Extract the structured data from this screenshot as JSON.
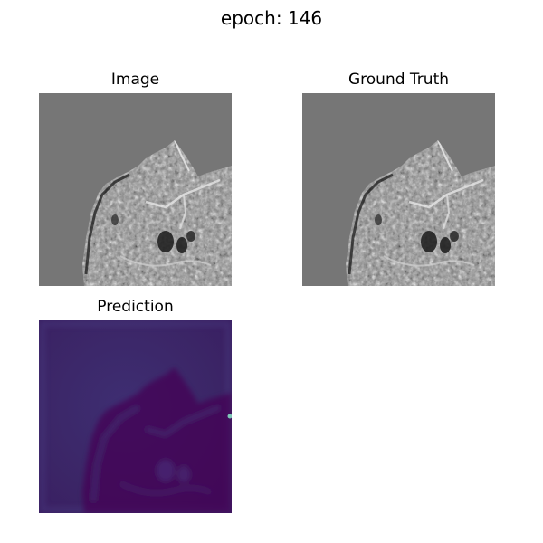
{
  "figure": {
    "title": "epoch: 146"
  },
  "panels": [
    {
      "title": "Image",
      "colormap": "gray",
      "background_color": "#767676"
    },
    {
      "title": "Ground Truth",
      "colormap": "gray",
      "background_color": "#767676"
    },
    {
      "title": "Prediction",
      "colormap": "viridis",
      "background_color": "#3b2566"
    }
  ],
  "colors": {
    "figure_background": "#ffffff",
    "gray_background": "#767676",
    "viridis_dark": "#440154",
    "viridis_mid": "#3b2566",
    "viridis_light": "#2c7f8e"
  }
}
